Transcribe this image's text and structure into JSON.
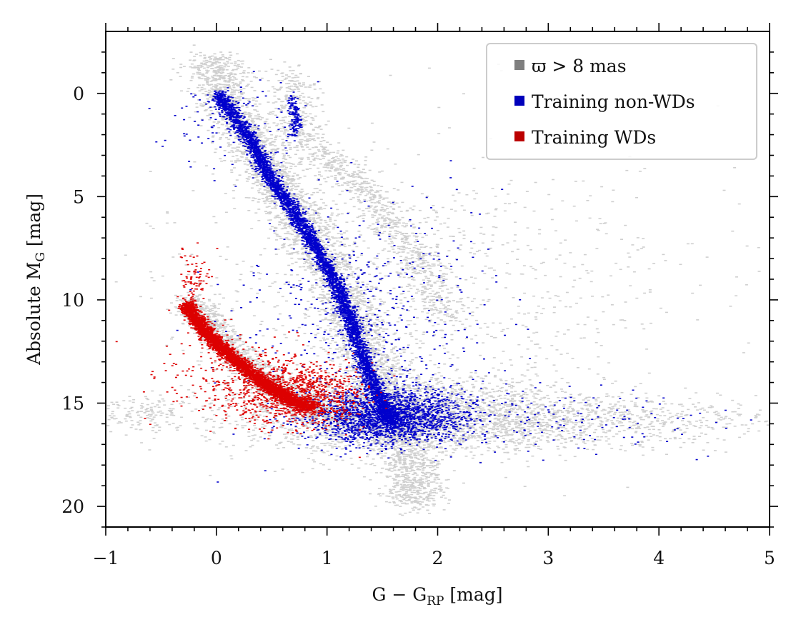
{
  "chart_data": {
    "type": "scatter",
    "title": "",
    "xlabel": "G − G",
    "xlabel_sub": "RP",
    "xlabel_unit": " [mag]",
    "ylabel": "Absolute M",
    "ylabel_sub": "G",
    "ylabel_unit": " [mag]",
    "xlim": [
      -1,
      5
    ],
    "ylim": [
      21,
      -3
    ],
    "y_inverted": true,
    "grid": false,
    "legend_position": "top-right",
    "x_ticks": [
      {
        "value": -1,
        "label": "−1"
      },
      {
        "value": 0,
        "label": "0"
      },
      {
        "value": 1,
        "label": "1"
      },
      {
        "value": 2,
        "label": "2"
      },
      {
        "value": 3,
        "label": "3"
      },
      {
        "value": 4,
        "label": "4"
      },
      {
        "value": 5,
        "label": "5"
      }
    ],
    "y_ticks": [
      {
        "value": 0,
        "label": "0"
      },
      {
        "value": 5,
        "label": "5"
      },
      {
        "value": 10,
        "label": "10"
      },
      {
        "value": 15,
        "label": "15"
      },
      {
        "value": 20,
        "label": "20"
      }
    ],
    "series": [
      {
        "name": "ϖ > 8 mas",
        "color": "#7f7f7f",
        "point_color": "#cfcfcf",
        "regions": [
          {
            "kind": "track",
            "path": [
              [
                -0.05,
                -1.8
              ],
              [
                0.05,
                0.2
              ],
              [
                0.35,
                2.5
              ],
              [
                0.5,
                4.0
              ],
              [
                0.8,
                6.5
              ],
              [
                1.0,
                8.5
              ],
              [
                1.15,
                10.0
              ],
              [
                1.3,
                12.0
              ],
              [
                1.45,
                14.0
              ],
              [
                1.6,
                15.5
              ],
              [
                1.7,
                17.0
              ],
              [
                1.75,
                18.5
              ],
              [
                1.78,
                20.0
              ]
            ],
            "spread_x": 0.28,
            "spread_y": 0.55,
            "n": 4200
          },
          {
            "kind": "track",
            "path": [
              [
                0.65,
                -1.2
              ],
              [
                0.7,
                0.5
              ],
              [
                0.7,
                1.8
              ],
              [
                0.95,
                3.0
              ],
              [
                1.4,
                5.0
              ],
              [
                1.8,
                8.0
              ],
              [
                2.1,
                11.0
              ]
            ],
            "spread_x": 0.22,
            "spread_y": 0.6,
            "n": 1100
          },
          {
            "kind": "track",
            "path": [
              [
                -0.25,
                10.0
              ],
              [
                0.2,
                12.8
              ],
              [
                0.5,
                14.2
              ],
              [
                0.85,
                15.2
              ],
              [
                1.2,
                15.8
              ]
            ],
            "spread_x": 0.18,
            "spread_y": 0.55,
            "n": 1400
          },
          {
            "kind": "blob",
            "center": [
              1.7,
              15.6
            ],
            "sx": 0.75,
            "sy": 0.9,
            "n": 2600
          },
          {
            "kind": "blob",
            "center": [
              3.3,
              15.8
            ],
            "sx": 0.9,
            "sy": 0.7,
            "n": 800
          },
          {
            "kind": "blob",
            "center": [
              1.8,
              9.5
            ],
            "sx": 1.2,
            "sy": 3.5,
            "n": 900
          },
          {
            "kind": "blob",
            "center": [
              -0.7,
              15.5
            ],
            "sx": 0.25,
            "sy": 0.4,
            "n": 150
          }
        ]
      },
      {
        "name": "Training non-WDs",
        "color": "#0000bb",
        "point_color": "#0000cc",
        "regions": [
          {
            "kind": "track",
            "path": [
              [
                0.0,
                0.0
              ],
              [
                0.3,
                2.2
              ],
              [
                0.45,
                3.8
              ],
              [
                0.7,
                5.8
              ],
              [
                0.95,
                8.0
              ],
              [
                1.1,
                9.5
              ],
              [
                1.2,
                11.0
              ],
              [
                1.3,
                12.5
              ],
              [
                1.4,
                14.0
              ],
              [
                1.5,
                15.2
              ],
              [
                1.6,
                16.0
              ]
            ],
            "spread_x": 0.07,
            "spread_y": 0.35,
            "n": 4500
          },
          {
            "kind": "track",
            "path": [
              [
                0.65,
                0.2
              ],
              [
                0.72,
                1.2
              ],
              [
                0.68,
                2.0
              ]
            ],
            "spread_x": 0.05,
            "spread_y": 0.35,
            "n": 140
          },
          {
            "kind": "blob",
            "center": [
              1.55,
              15.6
            ],
            "sx": 0.35,
            "sy": 0.65,
            "n": 2000
          },
          {
            "kind": "blob",
            "center": [
              1.3,
              10.5
            ],
            "sx": 0.55,
            "sy": 2.6,
            "n": 500
          },
          {
            "kind": "blob",
            "center": [
              2.6,
              15.8
            ],
            "sx": 0.9,
            "sy": 0.8,
            "n": 220
          },
          {
            "kind": "blob",
            "center": [
              0.2,
              1.5
            ],
            "sx": 0.3,
            "sy": 1.2,
            "n": 120
          }
        ]
      },
      {
        "name": "Training WDs",
        "color": "#bb0000",
        "point_color": "#dd0000",
        "regions": [
          {
            "kind": "track",
            "path": [
              [
                -0.28,
                10.2
              ],
              [
                -0.1,
                11.6
              ],
              [
                0.1,
                12.6
              ],
              [
                0.3,
                13.5
              ],
              [
                0.5,
                14.3
              ],
              [
                0.7,
                14.9
              ],
              [
                0.85,
                15.2
              ]
            ],
            "spread_x": 0.07,
            "spread_y": 0.28,
            "n": 3600
          },
          {
            "kind": "blob",
            "center": [
              0.75,
              14.6
            ],
            "sx": 0.28,
            "sy": 0.7,
            "n": 900
          },
          {
            "kind": "blob",
            "center": [
              0.25,
              13.8
            ],
            "sx": 0.35,
            "sy": 1.2,
            "n": 350
          },
          {
            "kind": "blob",
            "center": [
              -0.2,
              9.0
            ],
            "sx": 0.07,
            "sy": 0.7,
            "n": 90
          }
        ]
      }
    ]
  }
}
